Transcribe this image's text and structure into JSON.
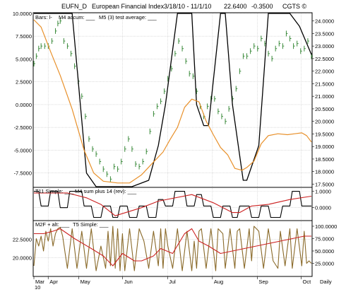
{
  "header": {
    "symbol": "EUFN_D",
    "name": "European Financial Index",
    "date_range": "3/18/10 - 11/1/10",
    "last": "22.6400",
    "change": "-0.3500",
    "copyright": "CGTS ©"
  },
  "legend": {
    "bars": "Bars: l-",
    "m4": "M4 accum: ___",
    "m5": "M5 (3) test average: ___",
    "t11": "T11 Simple: ___",
    "m4sum": "M4 sum plus 14 (rev): ___",
    "m2f": "M2F + alt: ___",
    "t5": "T5 Simple: ___"
  },
  "footer": {
    "months": [
      "Mar",
      "Apr",
      "May",
      "Jun",
      "Jul",
      "Aug",
      "Sep",
      "Oct"
    ],
    "year": "10",
    "period": "Daily"
  },
  "colors": {
    "price_bars": "#3a8a3a",
    "m4_line": "#000000",
    "m5_line": "#e8902a",
    "t11_line": "#000000",
    "m4sum_line": "#cc2222",
    "m2f_line": "#8a6a2a",
    "t5_line": "#cc2222",
    "grid": "#c8c8c8"
  },
  "chart_data": [
    {
      "type": "line",
      "panel": "price",
      "title": "EUFN_D European Financial Index",
      "left_axis": {
        "range": [
          -9.0,
          10.0
        ],
        "ticks": [
          "10.0000",
          "7.5000",
          "5.0000",
          "2.5000",
          "0.0000",
          "-2.5000",
          "-5.0000",
          "-7.5000"
        ],
        "tick_values": [
          10,
          7.5,
          5,
          2.5,
          0,
          -2.5,
          -5,
          -7.5
        ]
      },
      "right_axis": {
        "range": [
          17.4,
          24.3
        ],
        "ticks": [
          "24.0000",
          "23.5000",
          "23.0000",
          "22.5000",
          "22.0000",
          "21.5000",
          "21.0000",
          "20.5000",
          "20.0000",
          "19.5000",
          "19.0000",
          "18.5000",
          "18.0000",
          "17.5000"
        ],
        "tick_values": [
          24,
          23.5,
          23,
          22.5,
          22,
          21.5,
          21,
          20.5,
          20,
          19.5,
          19,
          18.5,
          18,
          17.5
        ]
      },
      "grid": true,
      "series": [
        {
          "name": "Bars",
          "kind": "price-bars",
          "axis": "right",
          "x": [
            0,
            2,
            4,
            6,
            9,
            12,
            15,
            18,
            20,
            22,
            25,
            28,
            31,
            34,
            37,
            40,
            43,
            46,
            49,
            52,
            55,
            58,
            61,
            64,
            67,
            70,
            73,
            76,
            79,
            82,
            85,
            88,
            91,
            94,
            97,
            100,
            103,
            106,
            109,
            112,
            115,
            118,
            121,
            124,
            127,
            130,
            133,
            136,
            139,
            142,
            145,
            148,
            151,
            154,
            157,
            160,
            163,
            166,
            169,
            172,
            175,
            178,
            181,
            184,
            187,
            190,
            193,
            196,
            199,
            202,
            205,
            208,
            211,
            214,
            217,
            220,
            223,
            226,
            229,
            232
          ],
          "values": [
            22.3,
            22.6,
            22.9,
            23.0,
            23.0,
            23.0,
            23.2,
            23.6,
            23.9,
            24.0,
            23.2,
            23.0,
            22.7,
            22.2,
            21.6,
            21.0,
            20.2,
            19.3,
            18.9,
            18.7,
            18.4,
            18.1,
            17.9,
            17.7,
            18.2,
            18.1,
            18.4,
            18.9,
            19.3,
            18.9,
            18.3,
            18.2,
            18.4,
            18.8,
            19.6,
            20.3,
            20.6,
            20.8,
            21.2,
            21.7,
            22.1,
            22.7,
            23.2,
            22.9,
            22.4,
            21.9,
            21.8,
            21.2,
            20.6,
            20.2,
            20.6,
            20.9,
            20.9,
            20.4,
            20.2,
            20.0,
            20.5,
            20.9,
            21.3,
            22.0,
            22.6,
            22.6,
            22.8,
            23.0,
            22.9,
            23.3,
            23.1,
            22.7,
            22.5,
            22.9,
            23.1,
            23.0,
            23.5,
            23.3,
            23.0,
            23.1,
            22.8,
            22.9,
            23.2,
            22.6
          ]
        },
        {
          "name": "M4 accum",
          "axis": "left",
          "x": [
            0,
            14,
            22,
            32,
            44,
            52,
            82,
            96,
            104,
            110,
            120,
            132,
            136,
            142,
            146,
            156,
            160,
            166,
            175,
            178,
            188,
            196,
            200,
            214,
            222,
            232
          ],
          "values": [
            10.0,
            10.0,
            10.0,
            10.0,
            -7.5,
            -9.0,
            -9.0,
            -8.3,
            -4.5,
            0.0,
            10.0,
            10.0,
            0.0,
            -2.3,
            -2.3,
            10.0,
            10.0,
            0.0,
            -8.3,
            -8.3,
            -4.5,
            10.0,
            10.0,
            10.0,
            8.6,
            5.5
          ]
        },
        {
          "name": "M5 (3) test average",
          "axis": "left",
          "x": [
            0,
            6,
            14,
            22,
            32,
            42,
            50,
            58,
            70,
            80,
            90,
            100,
            108,
            114,
            120,
            126,
            132,
            138,
            144,
            150,
            156,
            162,
            168,
            174,
            178,
            184,
            190,
            196,
            204,
            212,
            218,
            224,
            228,
            232
          ],
          "values": [
            9.3,
            8.5,
            5.8,
            3.2,
            -0.5,
            -5.0,
            -7.5,
            -8.4,
            -8.6,
            -8.6,
            -7.7,
            -6.3,
            -5.2,
            -3.8,
            -2.5,
            -0.3,
            0.6,
            0.3,
            -1.8,
            -3.3,
            -4.7,
            -5.5,
            -7.0,
            -7.2,
            -6.9,
            -6.2,
            -4.3,
            -3.4,
            -3.2,
            -3.3,
            -3.2,
            -3.1,
            -3.4,
            -4.1
          ]
        }
      ]
    },
    {
      "type": "line",
      "panel": "middle",
      "right_axis": {
        "range": [
          -0.75,
          1.2
        ],
        "ticks": [
          "1.0000",
          "0.0000"
        ],
        "tick_values": [
          1,
          0
        ]
      },
      "grid": true,
      "series": [
        {
          "name": "T11 Simple",
          "axis": "right",
          "x": [
            0,
            4,
            6,
            12,
            14,
            20,
            22,
            28,
            30,
            40,
            42,
            48,
            50,
            56,
            58,
            64,
            66,
            70,
            72,
            78,
            80,
            86,
            88,
            94,
            96,
            102,
            104,
            108,
            110,
            116,
            118,
            126,
            128,
            134,
            136,
            140,
            142,
            148,
            150,
            156,
            158,
            164,
            166,
            170,
            172,
            180,
            182,
            188,
            190,
            196,
            198,
            206,
            208,
            214,
            216,
            222,
            224,
            232
          ],
          "values": [
            1,
            1,
            0.1,
            0.1,
            1,
            1,
            0,
            0,
            1,
            1,
            0.1,
            0.1,
            -0.6,
            -0.6,
            0.1,
            0.1,
            -0.6,
            -0.6,
            0.1,
            0.1,
            -0.6,
            -0.6,
            0.1,
            0.1,
            -0.6,
            -0.6,
            0.5,
            0.5,
            0.1,
            0.1,
            1,
            1,
            0.1,
            0.1,
            0.8,
            0.8,
            0.1,
            0.1,
            -0.6,
            -0.6,
            0.1,
            0.1,
            -0.6,
            -0.6,
            0.1,
            0.1,
            -0.6,
            -0.6,
            0.1,
            0.1,
            -0.6,
            -0.6,
            0.1,
            0.1,
            1,
            1,
            0.1,
            0.1
          ]
        },
        {
          "name": "M4 sum plus 14 (rev)",
          "axis": "right",
          "x": [
            0,
            28,
            44,
            56,
            68,
            90,
            104,
            132,
            150,
            166,
            172,
            182,
            196,
            214,
            232
          ],
          "values": [
            0.9,
            0.9,
            0.6,
            0.2,
            -0.5,
            0.0,
            0.4,
            0.8,
            0.3,
            -0.3,
            -0.3,
            0.1,
            0.2,
            0.5,
            0.7
          ]
        }
      ]
    },
    {
      "type": "line",
      "panel": "bottom",
      "left_axis": {
        "range": [
          17.5,
          25.0
        ],
        "ticks": [
          "22.5000",
          "20.0000"
        ],
        "tick_values": [
          22.5,
          20
        ]
      },
      "right_axis": {
        "range": [
          0,
          110
        ],
        "ticks": [
          "100.0000",
          "75.0000",
          "50.0000",
          "25.0000"
        ],
        "tick_values": [
          100,
          75,
          50,
          25
        ]
      },
      "grid": true,
      "series": [
        {
          "name": "M2F + alt",
          "axis": "right",
          "x": [
            0,
            2,
            4,
            6,
            8,
            10,
            12,
            14,
            16,
            18,
            20,
            22,
            24,
            28,
            32,
            36,
            40,
            44,
            48,
            52,
            56,
            60,
            62,
            64,
            66,
            68,
            70,
            72,
            74,
            76,
            80,
            84,
            88,
            92,
            96,
            100,
            104,
            106,
            108,
            110,
            112,
            116,
            120,
            124,
            128,
            132,
            134,
            136,
            138,
            140,
            144,
            148,
            152,
            154,
            158,
            160,
            164,
            168,
            170,
            172,
            176,
            180,
            182,
            184,
            188,
            192,
            196,
            200,
            204,
            206,
            210,
            214,
            216,
            220,
            224,
            226,
            228,
            230,
            232
          ],
          "values": [
            20,
            75,
            60,
            80,
            50,
            90,
            70,
            95,
            60,
            85,
            95,
            98,
            80,
            15,
            95,
            15,
            90,
            15,
            95,
            10,
            60,
            15,
            90,
            20,
            100,
            15,
            95,
            10,
            85,
            10,
            95,
            10,
            95,
            70,
            15,
            90,
            20,
            95,
            15,
            95,
            60,
            15,
            95,
            10,
            90,
            10,
            70,
            15,
            90,
            95,
            15,
            95,
            10,
            95,
            85,
            15,
            95,
            15,
            90,
            95,
            15,
            95,
            30,
            100,
            90,
            15,
            95,
            30,
            15,
            90,
            20,
            95,
            15,
            95,
            20,
            90,
            25,
            30,
            25
          ]
        },
        {
          "name": "T5 Simple",
          "axis": "right",
          "x": [
            0,
            8,
            16,
            22,
            34,
            48,
            58,
            66,
            74,
            84,
            90,
            100,
            106,
            116,
            126,
            132,
            138,
            146,
            156,
            166,
            176,
            186,
            196,
            206,
            216,
            226,
            232
          ],
          "values": [
            85,
            85,
            90,
            95,
            75,
            55,
            40,
            20,
            45,
            30,
            30,
            40,
            55,
            45,
            85,
            95,
            70,
            60,
            45,
            50,
            55,
            60,
            65,
            70,
            75,
            80,
            80
          ]
        }
      ]
    }
  ]
}
